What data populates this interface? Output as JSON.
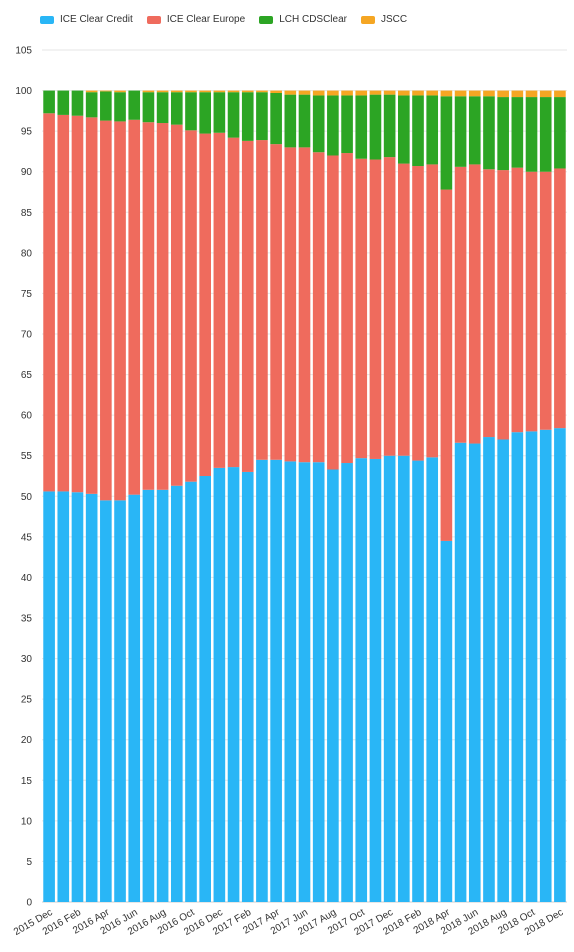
{
  "chart_data": {
    "type": "bar",
    "stacked": true,
    "categories": [
      "2015 Dec",
      "2016 Jan",
      "2016 Feb",
      "2016 Mar",
      "2016 Apr",
      "2016 May",
      "2016 Jun",
      "2016 Jul",
      "2016 Aug",
      "2016 Sep",
      "2016 Oct",
      "2016 Nov",
      "2016 Dec",
      "2017 Jan",
      "2017 Feb",
      "2017 Mar",
      "2017 Apr",
      "2017 May",
      "2017 Jun",
      "2017 Jul",
      "2017 Aug",
      "2017 Sep",
      "2017 Oct",
      "2017 Nov",
      "2017 Dec",
      "2018 Jan",
      "2018 Feb",
      "2018 Mar",
      "2018 Apr",
      "2018 May",
      "2018 Jun",
      "2018 Jul",
      "2018 Aug",
      "2018 Sep",
      "2018 Oct",
      "2018 Nov",
      "2018 Dec"
    ],
    "x_tick_labels_shown": [
      "2015 Dec",
      "2016 Feb",
      "2016 Apr",
      "2016 Jun",
      "2016 Aug",
      "2016 Oct",
      "2016 Dec",
      "2017 Feb",
      "2017 Apr",
      "2017 Jun",
      "2017 Aug",
      "2017 Oct",
      "2017 Dec",
      "2018 Feb",
      "2018 Apr",
      "2018 Jun",
      "2018 Aug",
      "2018 Oct",
      "2018 Dec"
    ],
    "series": [
      {
        "name": "ICE Clear Credit",
        "color": "#29b6f6",
        "values": [
          50.6,
          50.6,
          50.5,
          50.3,
          49.5,
          49.5,
          50.2,
          50.8,
          50.8,
          51.3,
          51.8,
          52.5,
          53.5,
          53.6,
          53.0,
          54.5,
          54.5,
          54.3,
          54.2,
          54.2,
          53.3,
          54.1,
          54.7,
          54.6,
          55.0,
          55.0,
          54.4,
          54.8,
          44.5,
          56.6,
          56.5,
          57.3,
          57.0,
          57.9,
          58.0,
          58.2,
          58.4
        ]
      },
      {
        "name": "ICE Clear Europe",
        "color": "#ef6b5d",
        "values": [
          46.6,
          46.4,
          46.4,
          46.4,
          46.8,
          46.7,
          46.2,
          45.3,
          45.2,
          44.5,
          43.3,
          42.2,
          41.3,
          40.6,
          40.8,
          39.4,
          38.9,
          38.7,
          38.8,
          38.2,
          38.7,
          38.2,
          36.9,
          36.9,
          36.8,
          36.0,
          36.3,
          36.1,
          43.3,
          34.0,
          34.4,
          33.0,
          33.2,
          32.6,
          32.0,
          31.8,
          32.0
        ]
      },
      {
        "name": "LCH CDSClear",
        "color": "#2ca524",
        "values": [
          2.8,
          3.0,
          3.1,
          3.1,
          3.6,
          3.6,
          3.6,
          3.7,
          3.8,
          4.0,
          4.7,
          5.1,
          5.0,
          5.6,
          6.0,
          5.9,
          6.3,
          6.5,
          6.5,
          7.0,
          7.4,
          7.1,
          7.8,
          8.0,
          7.7,
          8.4,
          8.7,
          8.5,
          11.5,
          8.7,
          8.4,
          9.0,
          9.0,
          8.7,
          9.2,
          9.2,
          8.8
        ]
      },
      {
        "name": "JSCC",
        "color": "#f5a623",
        "values": [
          0.0,
          0.0,
          0.0,
          0.2,
          0.1,
          0.2,
          0.0,
          0.2,
          0.2,
          0.2,
          0.2,
          0.2,
          0.2,
          0.2,
          0.2,
          0.2,
          0.3,
          0.5,
          0.5,
          0.6,
          0.6,
          0.6,
          0.6,
          0.5,
          0.5,
          0.6,
          0.6,
          0.6,
          0.7,
          0.7,
          0.7,
          0.7,
          0.8,
          0.8,
          0.8,
          0.8,
          0.8
        ]
      }
    ],
    "y_ticks": [
      0,
      5,
      10,
      15,
      20,
      25,
      30,
      35,
      40,
      45,
      50,
      55,
      60,
      65,
      70,
      75,
      80,
      85,
      90,
      95,
      100,
      105
    ],
    "ylim": [
      0,
      105
    ],
    "grid": true,
    "legend_position": "top-left",
    "title": "",
    "xlabel": "",
    "ylabel": ""
  }
}
